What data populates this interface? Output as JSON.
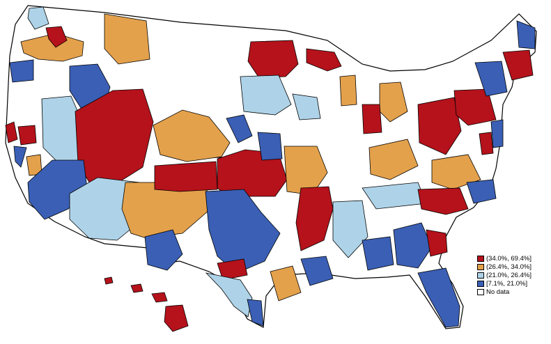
{
  "map": {
    "legend": [
      {
        "label": "(34.0%, 69.4%]",
        "color": "#b5121b"
      },
      {
        "label": "(26.4%, 34.0%]",
        "color": "#e4a14b"
      },
      {
        "label": "(21.0%, 26.4%]",
        "color": "#aed3e8"
      },
      {
        "label": "[7.1%, 21.0%]",
        "color": "#3a5fb5"
      },
      {
        "label": "No data",
        "color": "#ffffff"
      }
    ]
  }
}
